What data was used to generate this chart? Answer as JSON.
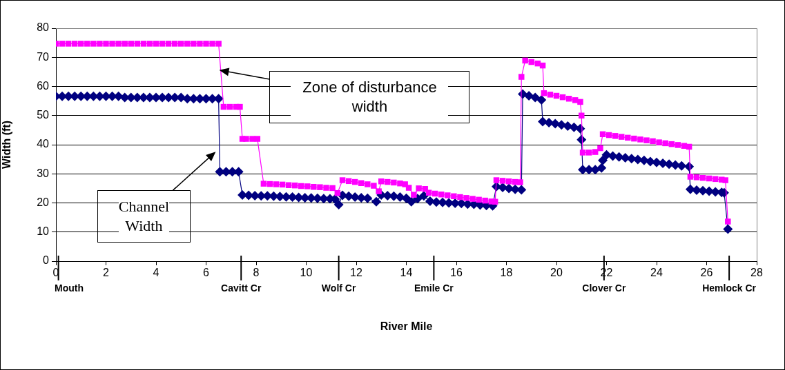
{
  "chart_data": {
    "type": "line",
    "xlabel": "River Mile",
    "ylabel": "Width (ft)",
    "xlim": [
      0,
      28
    ],
    "xticks": [
      0,
      2,
      4,
      6,
      8,
      10,
      12,
      14,
      16,
      18,
      20,
      22,
      24,
      26,
      28
    ],
    "ylim": [
      0,
      80
    ],
    "yticks": [
      0,
      10,
      20,
      30,
      40,
      50,
      60,
      70,
      80
    ],
    "grid": "y",
    "legend": false,
    "line_style": "solid",
    "series": [
      {
        "color": "#ff00ff",
        "marker": "square",
        "x": [
          0,
          0.25,
          0.5,
          0.75,
          1,
          1.25,
          1.5,
          1.75,
          2,
          2.25,
          2.5,
          2.75,
          3,
          3.25,
          3.5,
          3.75,
          4,
          4.25,
          4.5,
          4.75,
          5,
          5.25,
          5.5,
          5.75,
          6,
          6.25,
          6.5,
          6.7,
          6.95,
          7.2,
          7.35,
          7.45,
          7.6,
          7.85,
          8.05,
          8.3,
          8.55,
          8.8,
          9.05,
          9.3,
          9.55,
          9.8,
          10.05,
          10.3,
          10.55,
          10.8,
          11.05,
          11.25,
          11.45,
          11.7,
          11.95,
          12.2,
          12.45,
          12.7,
          12.9,
          13.0,
          13.25,
          13.5,
          13.75,
          13.95,
          14.1,
          14.3,
          14.5,
          14.75,
          14.9,
          15.15,
          15.4,
          15.65,
          15.9,
          16.15,
          16.4,
          16.65,
          16.9,
          17.15,
          17.4,
          17.55,
          17.6,
          17.85,
          18.1,
          18.35,
          18.55,
          18.6,
          18.75,
          19.0,
          19.25,
          19.45,
          19.5,
          19.75,
          20.0,
          20.25,
          20.5,
          20.75,
          20.95,
          21.0,
          21.05,
          21.3,
          21.55,
          21.75,
          21.85,
          22.1,
          22.35,
          22.6,
          22.85,
          23.1,
          23.35,
          23.6,
          23.85,
          24.1,
          24.35,
          24.6,
          24.85,
          25.1,
          25.3,
          25.35,
          25.6,
          25.85,
          26.1,
          26.35,
          26.6,
          26.75,
          26.85
        ],
        "values": [
          74.7,
          74.7,
          74.7,
          74.7,
          74.7,
          74.7,
          74.7,
          74.7,
          74.7,
          74.7,
          74.7,
          74.7,
          74.7,
          74.7,
          74.7,
          74.7,
          74.7,
          74.7,
          74.7,
          74.7,
          74.7,
          74.7,
          74.7,
          74.7,
          74.7,
          74.7,
          74.7,
          53,
          53,
          53,
          53,
          42,
          42,
          42,
          42,
          26.6,
          26.5,
          26.4,
          26.3,
          26.1,
          26,
          25.8,
          25.7,
          25.5,
          25.4,
          25.2,
          25.1,
          23.4,
          27.8,
          27.5,
          27.2,
          26.8,
          26.4,
          25.9,
          24,
          27.4,
          27.2,
          27,
          26.7,
          26.4,
          25.2,
          22.8,
          25,
          24.8,
          23.5,
          23.2,
          22.9,
          22.6,
          22.3,
          22,
          21.7,
          21.4,
          21.1,
          20.8,
          20.5,
          20.4,
          27.8,
          27.6,
          27.4,
          27.2,
          27.1,
          63.3,
          68.9,
          68.4,
          67.9,
          67.2,
          57.7,
          57.2,
          56.8,
          56.3,
          55.8,
          55.3,
          54.7,
          50,
          37.3,
          37.3,
          37.5,
          38.8,
          43.6,
          43.3,
          43,
          42.7,
          42.4,
          42.1,
          41.8,
          41.5,
          41.2,
          40.8,
          40.5,
          40.2,
          39.9,
          39.6,
          39.3,
          29,
          28.8,
          28.6,
          28.4,
          28.2,
          28,
          27.8,
          13.6
        ]
      },
      {
        "color": "#000080",
        "marker": "diamond",
        "x": [
          0,
          0.25,
          0.5,
          0.75,
          1,
          1.25,
          1.5,
          1.75,
          2,
          2.25,
          2.5,
          2.75,
          3,
          3.25,
          3.5,
          3.75,
          4,
          4.25,
          4.5,
          4.75,
          5,
          5.25,
          5.5,
          5.75,
          6,
          6.25,
          6.5,
          6.55,
          6.8,
          7.05,
          7.3,
          7.45,
          7.7,
          7.95,
          8.2,
          8.45,
          8.7,
          8.95,
          9.2,
          9.45,
          9.7,
          9.95,
          10.2,
          10.45,
          10.7,
          10.95,
          11.15,
          11.3,
          11.45,
          11.7,
          11.95,
          12.2,
          12.45,
          12.8,
          13.0,
          13.25,
          13.5,
          13.75,
          14.0,
          14.2,
          14.45,
          14.7,
          14.95,
          15.2,
          15.45,
          15.7,
          15.95,
          16.2,
          16.45,
          16.7,
          16.95,
          17.2,
          17.45,
          17.6,
          17.85,
          18.1,
          18.35,
          18.6,
          18.65,
          18.9,
          19.15,
          19.4,
          19.45,
          19.7,
          19.95,
          20.2,
          20.45,
          20.7,
          20.95,
          21.0,
          21.05,
          21.3,
          21.55,
          21.8,
          21.85,
          22.0,
          22.25,
          22.5,
          22.75,
          23.0,
          23.25,
          23.5,
          23.75,
          24.0,
          24.25,
          24.5,
          24.75,
          25.0,
          25.3,
          25.35,
          25.6,
          25.85,
          26.1,
          26.35,
          26.6,
          26.7,
          26.85
        ],
        "values": [
          56.6,
          56.6,
          56.6,
          56.6,
          56.6,
          56.6,
          56.6,
          56.6,
          56.6,
          56.6,
          56.6,
          56.2,
          56.2,
          56.2,
          56.2,
          56.2,
          56.2,
          56.2,
          56.2,
          56.2,
          56.2,
          55.8,
          55.8,
          55.8,
          55.8,
          55.8,
          55.8,
          30.7,
          30.7,
          30.7,
          30.7,
          22.7,
          22.6,
          22.5,
          22.4,
          22.4,
          22.3,
          22.2,
          22.1,
          22,
          21.9,
          21.8,
          21.7,
          21.6,
          21.5,
          21.4,
          21.3,
          19.4,
          22.6,
          22.3,
          22,
          21.8,
          21.6,
          20.4,
          22.7,
          22.5,
          22.3,
          22,
          21.6,
          20.4,
          21.5,
          22.4,
          20.6,
          20.3,
          20.2,
          20,
          19.9,
          19.8,
          19.6,
          19.5,
          19.3,
          19.1,
          19,
          25.6,
          25.3,
          25,
          24.7,
          24.5,
          57.4,
          56.8,
          56.2,
          55.4,
          47.9,
          47.6,
          47.2,
          46.8,
          46.4,
          46,
          45.5,
          41.7,
          31.4,
          31.4,
          31.4,
          32,
          34.6,
          36.5,
          36.1,
          35.8,
          35.5,
          35.2,
          34.9,
          34.6,
          34.2,
          33.9,
          33.6,
          33.3,
          33,
          32.7,
          32.5,
          24.7,
          24.4,
          24.2,
          24,
          23.8,
          23.6,
          23.5,
          11
        ]
      }
    ],
    "ref_lines": [
      {
        "axis": "x",
        "value": 0.1,
        "label": "Mouth",
        "color": "#000000"
      },
      {
        "axis": "x",
        "value": 7.4,
        "label": "Cavitt Cr",
        "color": "#000000"
      },
      {
        "axis": "x",
        "value": 11.3,
        "label": "Wolf Cr",
        "color": "#000000"
      },
      {
        "axis": "x",
        "value": 15.1,
        "label": "Emile Cr",
        "color": "#000000"
      },
      {
        "axis": "x",
        "value": 21.9,
        "label": "Clover Cr",
        "color": "#000000"
      },
      {
        "axis": "x",
        "value": 26.9,
        "label": "Hemlock Cr",
        "color": "#000000"
      }
    ],
    "annotations": [
      "Zone of disturbance width",
      "Channel Width"
    ]
  }
}
